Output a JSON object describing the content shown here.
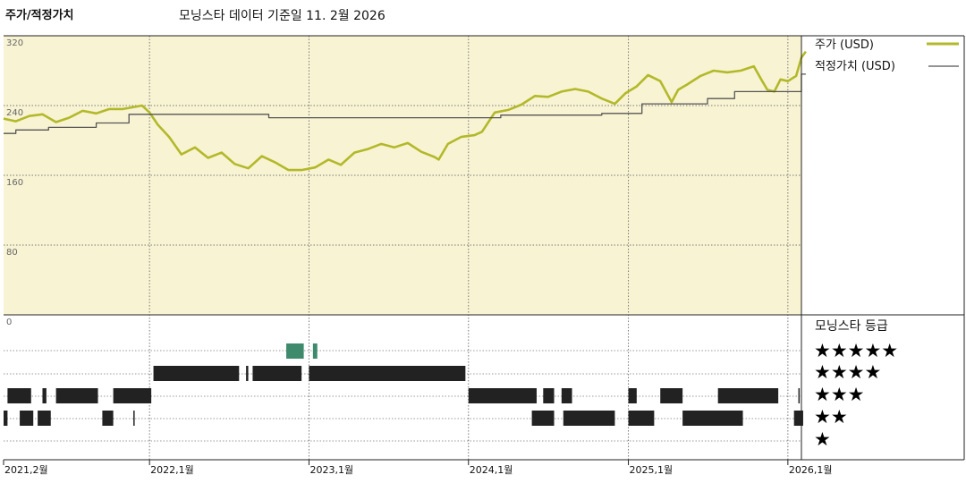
{
  "header": {
    "title": "주가/적정가치",
    "source": "모닝스타 데이터 기준일 11. 2월 2026"
  },
  "colors": {
    "price": "#b3b82a",
    "fair_value": "#555555",
    "panel_bg": "#f8f4d3",
    "bar_dark": "#222222",
    "bar_green": "#3d8a6c"
  },
  "legend": {
    "price_label": "주가 (USD)",
    "fair_value_label": "적정가치 (USD)"
  },
  "rating_panel": {
    "title": "모닝스타 등급",
    "rows": [
      "★★★★★",
      "★★★★",
      "★★★",
      "★★",
      "★"
    ]
  },
  "chart_data": {
    "type": "line",
    "ylim": [
      0,
      320
    ],
    "yticks": [
      "320",
      "240",
      "160",
      "80",
      "0"
    ],
    "x_start": "2021-02",
    "x_end": "2026-02",
    "xticks": [
      {
        "date": "2021-02",
        "label": "2021,2월"
      },
      {
        "date": "2022-01",
        "label": "2022,1월"
      },
      {
        "date": "2023-01",
        "label": "2023,1월"
      },
      {
        "date": "2024-01",
        "label": "2024,1월"
      },
      {
        "date": "2025-01",
        "label": "2025,1월"
      },
      {
        "date": "2026-01",
        "label": "2026,1월"
      }
    ],
    "series": [
      {
        "name": "주가 (USD)",
        "points": [
          [
            "2021-02-01",
            225
          ],
          [
            "2021-03-01",
            222
          ],
          [
            "2021-04-01",
            228
          ],
          [
            "2021-05-01",
            230
          ],
          [
            "2021-06-01",
            221
          ],
          [
            "2021-07-01",
            226
          ],
          [
            "2021-08-01",
            234
          ],
          [
            "2021-09-01",
            231
          ],
          [
            "2021-10-01",
            236
          ],
          [
            "2021-11-01",
            236
          ],
          [
            "2021-12-15",
            240
          ],
          [
            "2022-01-01",
            232
          ],
          [
            "2022-01-20",
            218
          ],
          [
            "2022-02-15",
            204
          ],
          [
            "2022-03-15",
            184
          ],
          [
            "2022-04-15",
            192
          ],
          [
            "2022-05-15",
            180
          ],
          [
            "2022-06-15",
            186
          ],
          [
            "2022-07-15",
            173
          ],
          [
            "2022-08-15",
            168
          ],
          [
            "2022-09-15",
            182
          ],
          [
            "2022-10-15",
            175
          ],
          [
            "2022-11-15",
            166
          ],
          [
            "2022-12-15",
            166
          ],
          [
            "2023-01-15",
            169
          ],
          [
            "2023-02-15",
            178
          ],
          [
            "2023-03-15",
            172
          ],
          [
            "2023-04-15",
            186
          ],
          [
            "2023-05-15",
            190
          ],
          [
            "2023-06-15",
            196
          ],
          [
            "2023-07-15",
            192
          ],
          [
            "2023-08-15",
            197
          ],
          [
            "2023-09-15",
            187
          ],
          [
            "2023-10-15",
            181
          ],
          [
            "2023-10-25",
            178
          ],
          [
            "2023-11-15",
            196
          ],
          [
            "2023-12-15",
            204
          ],
          [
            "2024-01-15",
            206
          ],
          [
            "2024-02-01",
            210
          ],
          [
            "2024-03-01",
            232
          ],
          [
            "2024-04-01",
            235
          ],
          [
            "2024-05-01",
            241
          ],
          [
            "2024-06-01",
            251
          ],
          [
            "2024-07-01",
            250
          ],
          [
            "2024-08-01",
            256
          ],
          [
            "2024-09-01",
            259
          ],
          [
            "2024-10-01",
            256
          ],
          [
            "2024-11-01",
            248
          ],
          [
            "2024-12-01",
            242
          ],
          [
            "2024-12-25",
            254
          ],
          [
            "2025-01-20",
            262
          ],
          [
            "2025-02-15",
            275
          ],
          [
            "2025-03-15",
            268
          ],
          [
            "2025-04-10",
            244
          ],
          [
            "2025-04-25",
            258
          ],
          [
            "2025-05-15",
            264
          ],
          [
            "2025-06-15",
            274
          ],
          [
            "2025-07-15",
            280
          ],
          [
            "2025-08-15",
            278
          ],
          [
            "2025-09-15",
            280
          ],
          [
            "2025-10-15",
            285
          ],
          [
            "2025-11-01",
            270
          ],
          [
            "2025-11-15",
            258
          ],
          [
            "2025-12-01",
            256
          ],
          [
            "2025-12-15",
            270
          ],
          [
            "2026-01-01",
            268
          ],
          [
            "2026-01-20",
            274
          ],
          [
            "2026-02-01",
            295
          ],
          [
            "2026-02-11",
            302
          ]
        ]
      },
      {
        "name": "적정가치 (USD)",
        "points": [
          [
            "2021-02-01",
            208
          ],
          [
            "2021-03-01",
            208
          ],
          [
            "2021-03-01",
            212
          ],
          [
            "2021-05-15",
            212
          ],
          [
            "2021-05-15",
            215
          ],
          [
            "2021-09-01",
            215
          ],
          [
            "2021-09-01",
            220
          ],
          [
            "2021-11-15",
            220
          ],
          [
            "2021-11-15",
            230
          ],
          [
            "2022-10-01",
            230
          ],
          [
            "2022-10-01",
            226
          ],
          [
            "2024-03-15",
            226
          ],
          [
            "2024-03-15",
            229
          ],
          [
            "2024-11-01",
            229
          ],
          [
            "2024-11-01",
            231
          ],
          [
            "2025-02-01",
            231
          ],
          [
            "2025-02-01",
            242
          ],
          [
            "2025-07-01",
            242
          ],
          [
            "2025-07-01",
            248
          ],
          [
            "2025-09-01",
            248
          ],
          [
            "2025-09-01",
            256
          ],
          [
            "2026-02-01",
            256
          ],
          [
            "2026-02-01",
            276
          ],
          [
            "2026-02-11",
            276
          ]
        ]
      }
    ],
    "rating_timeline": {
      "5": [
        [
          "2022-11-10",
          "2022-12-20"
        ],
        [
          "2023-01-10",
          "2023-01-20"
        ]
      ],
      "4": [
        [
          "2022-01-10",
          "2022-07-25"
        ],
        [
          "2022-08-10",
          "2022-08-15"
        ],
        [
          "2022-08-25",
          "2022-12-15"
        ],
        [
          "2023-01-01",
          "2023-12-25"
        ]
      ],
      "3": [
        [
          "2021-02-10",
          "2021-04-05"
        ],
        [
          "2021-05-01",
          "2021-05-10"
        ],
        [
          "2021-06-01",
          "2021-09-05"
        ],
        [
          "2021-10-10",
          "2022-01-05"
        ],
        [
          "2024-01-01",
          "2024-06-05"
        ],
        [
          "2024-06-20",
          "2024-07-15"
        ],
        [
          "2024-08-01",
          "2024-08-25"
        ],
        [
          "2025-01-01",
          "2025-01-20"
        ],
        [
          "2025-03-15",
          "2025-05-05"
        ],
        [
          "2025-07-25",
          "2025-12-10"
        ],
        [
          "2026-01-25",
          "2026-01-28"
        ]
      ],
      "2": [
        [
          "2021-02-01",
          "2021-02-10"
        ],
        [
          "2021-03-10",
          "2021-04-10"
        ],
        [
          "2021-04-20",
          "2021-05-20"
        ],
        [
          "2021-09-15",
          "2021-10-10"
        ],
        [
          "2021-11-25",
          "2021-11-28"
        ],
        [
          "2024-05-25",
          "2024-07-15"
        ],
        [
          "2024-08-05",
          "2024-12-01"
        ],
        [
          "2025-01-01",
          "2025-03-01"
        ],
        [
          "2025-05-05",
          "2025-09-20"
        ],
        [
          "2026-01-15",
          "2026-02-05"
        ]
      ]
    }
  }
}
